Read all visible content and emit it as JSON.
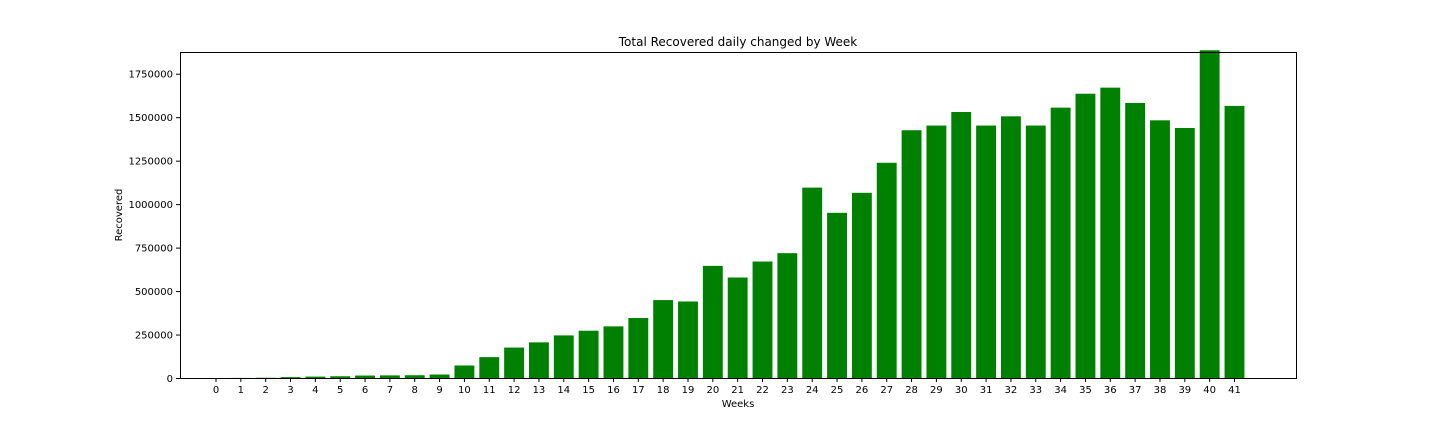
{
  "chart_data": {
    "type": "bar",
    "title": "Total Recovered daily changed by Week",
    "xlabel": "Weeks",
    "ylabel": "Recovered",
    "categories": [
      "0",
      "1",
      "2",
      "3",
      "4",
      "5",
      "6",
      "7",
      "8",
      "9",
      "10",
      "11",
      "12",
      "13",
      "14",
      "15",
      "16",
      "17",
      "18",
      "19",
      "20",
      "21",
      "22",
      "23",
      "24",
      "25",
      "26",
      "27",
      "28",
      "29",
      "30",
      "31",
      "32",
      "33",
      "34",
      "35",
      "36",
      "37",
      "38",
      "39",
      "40",
      "41"
    ],
    "values": [
      0,
      500,
      1500,
      5000,
      8000,
      10000,
      14000,
      15000,
      16000,
      20000,
      72000,
      120000,
      175000,
      205000,
      245000,
      272000,
      297000,
      345000,
      448000,
      440000,
      645000,
      578000,
      670000,
      718000,
      1095000,
      950000,
      1065000,
      1238000,
      1425000,
      1452000,
      1530000,
      1452000,
      1505000,
      1452000,
      1555000,
      1635000,
      1670000,
      1582000,
      1482000,
      1438000,
      1885000,
      1565000
    ],
    "ylim": [
      0,
      1875000
    ],
    "yticks": [
      0,
      250000,
      500000,
      750000,
      1000000,
      1250000,
      1500000,
      1750000
    ],
    "ytick_labels": [
      "0",
      "250000",
      "500000",
      "750000",
      "1000000",
      "1250000",
      "1500000",
      "1750000"
    ],
    "grid": false,
    "bar_color": "#008000"
  }
}
